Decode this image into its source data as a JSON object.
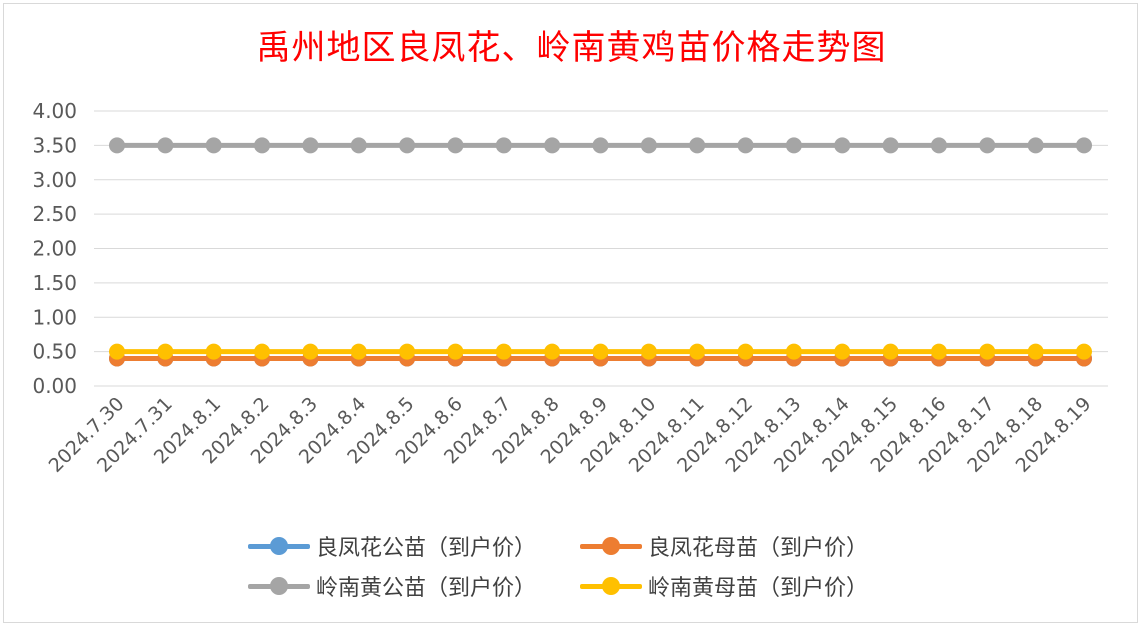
{
  "chart_data": {
    "type": "line",
    "title": "禹州地区良凤花、岭南黄鸡苗价格走势图",
    "categories": [
      "2024.7.30",
      "2024.7.31",
      "2024.8.1",
      "2024.8.2",
      "2024.8.3",
      "2024.8.4",
      "2024.8.5",
      "2024.8.6",
      "2024.8.7",
      "2024.8.8",
      "2024.8.9",
      "2024.8.10",
      "2024.8.11",
      "2024.8.12",
      "2024.8.13",
      "2024.8.14",
      "2024.8.15",
      "2024.8.16",
      "2024.8.17",
      "2024.8.18",
      "2024.8.19"
    ],
    "ylim": [
      0,
      4
    ],
    "yticks": [
      "0.00",
      "0.50",
      "1.00",
      "1.50",
      "2.00",
      "2.50",
      "3.00",
      "3.50",
      "4.00"
    ],
    "grid": true,
    "legend_position": "bottom",
    "series": [
      {
        "name": "良凤花公苗（到户价）",
        "color": "#5b9bd5",
        "values": [
          0.4,
          0.4,
          0.4,
          0.4,
          0.4,
          0.4,
          0.4,
          0.4,
          0.4,
          0.4,
          0.4,
          0.4,
          0.4,
          0.4,
          0.4,
          0.4,
          0.4,
          0.4,
          0.4,
          0.4,
          0.4
        ]
      },
      {
        "name": "良凤花母苗（到户价）",
        "color": "#ed7d31",
        "values": [
          0.4,
          0.4,
          0.4,
          0.4,
          0.4,
          0.4,
          0.4,
          0.4,
          0.4,
          0.4,
          0.4,
          0.4,
          0.4,
          0.4,
          0.4,
          0.4,
          0.4,
          0.4,
          0.4,
          0.4,
          0.4
        ]
      },
      {
        "name": "岭南黄公苗（到户价）",
        "color": "#a5a5a5",
        "values": [
          3.5,
          3.5,
          3.5,
          3.5,
          3.5,
          3.5,
          3.5,
          3.5,
          3.5,
          3.5,
          3.5,
          3.5,
          3.5,
          3.5,
          3.5,
          3.5,
          3.5,
          3.5,
          3.5,
          3.5,
          3.5
        ]
      },
      {
        "name": "岭南黄母苗（到户价）",
        "color": "#ffc000",
        "values": [
          0.5,
          0.5,
          0.5,
          0.5,
          0.5,
          0.5,
          0.5,
          0.5,
          0.5,
          0.5,
          0.5,
          0.5,
          0.5,
          0.5,
          0.5,
          0.5,
          0.5,
          0.5,
          0.5,
          0.5,
          0.5
        ]
      }
    ]
  }
}
